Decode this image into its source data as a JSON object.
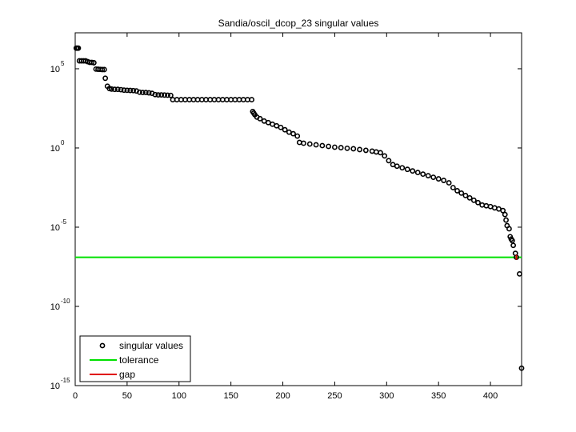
{
  "chart_data": {
    "type": "scatter",
    "title": "Sandia/oscil_dcop_23 singular values",
    "xlabel": "",
    "ylabel": "",
    "yscale": "log",
    "xlim": [
      0,
      430
    ],
    "ylim_log10": [
      -15,
      7.27
    ],
    "x_ticks": [
      0,
      50,
      100,
      150,
      200,
      250,
      300,
      350,
      400
    ],
    "y_ticks": [
      {
        "base": "10",
        "exp": "5",
        "log10": 5
      },
      {
        "base": "10",
        "exp": "0",
        "log10": 0
      },
      {
        "base": "10",
        "exp": "-5",
        "log10": -5
      },
      {
        "base": "10",
        "exp": "-10",
        "log10": -10
      },
      {
        "base": "10",
        "exp": "-15",
        "log10": -15
      }
    ],
    "grid": false,
    "legend_position": "lower left",
    "legend": [
      {
        "label": "singular values",
        "type": "marker",
        "color": "#000000"
      },
      {
        "label": "tolerance",
        "type": "line",
        "color": "#00e000"
      },
      {
        "label": "gap",
        "type": "line",
        "color": "#e00000"
      }
    ],
    "series": [
      {
        "name": "singular values",
        "marker": "circle-open",
        "color": "#000000",
        "points_log10": [
          [
            1,
            6.3
          ],
          [
            2,
            6.3
          ],
          [
            3,
            6.3
          ],
          [
            4,
            5.5
          ],
          [
            6,
            5.5
          ],
          [
            8,
            5.5
          ],
          [
            10,
            5.5
          ],
          [
            12,
            5.45
          ],
          [
            14,
            5.4
          ],
          [
            16,
            5.4
          ],
          [
            18,
            5.38
          ],
          [
            20,
            4.98
          ],
          [
            22,
            4.97
          ],
          [
            24,
            4.96
          ],
          [
            26,
            4.95
          ],
          [
            28,
            4.95
          ],
          [
            29,
            4.4
          ],
          [
            31,
            3.9
          ],
          [
            33,
            3.75
          ],
          [
            35,
            3.72
          ],
          [
            38,
            3.7
          ],
          [
            41,
            3.7
          ],
          [
            44,
            3.68
          ],
          [
            47,
            3.65
          ],
          [
            50,
            3.64
          ],
          [
            53,
            3.63
          ],
          [
            56,
            3.62
          ],
          [
            59,
            3.6
          ],
          [
            62,
            3.52
          ],
          [
            65,
            3.5
          ],
          [
            68,
            3.5
          ],
          [
            71,
            3.48
          ],
          [
            74,
            3.45
          ],
          [
            77,
            3.37
          ],
          [
            80,
            3.35
          ],
          [
            83,
            3.35
          ],
          [
            86,
            3.34
          ],
          [
            89,
            3.33
          ],
          [
            92,
            3.32
          ],
          [
            94,
            3.05
          ],
          [
            98,
            3.05
          ],
          [
            102,
            3.05
          ],
          [
            106,
            3.05
          ],
          [
            110,
            3.05
          ],
          [
            114,
            3.05
          ],
          [
            118,
            3.05
          ],
          [
            122,
            3.05
          ],
          [
            126,
            3.05
          ],
          [
            130,
            3.05
          ],
          [
            134,
            3.05
          ],
          [
            138,
            3.05
          ],
          [
            142,
            3.05
          ],
          [
            146,
            3.05
          ],
          [
            150,
            3.05
          ],
          [
            154,
            3.05
          ],
          [
            158,
            3.05
          ],
          [
            162,
            3.05
          ],
          [
            166,
            3.05
          ],
          [
            170,
            3.05
          ],
          [
            171,
            2.3
          ],
          [
            172,
            2.2
          ],
          [
            173,
            2.1
          ],
          [
            175,
            1.95
          ],
          [
            178,
            1.85
          ],
          [
            182,
            1.7
          ],
          [
            186,
            1.6
          ],
          [
            190,
            1.5
          ],
          [
            194,
            1.4
          ],
          [
            198,
            1.3
          ],
          [
            202,
            1.15
          ],
          [
            206,
            1.0
          ],
          [
            210,
            0.9
          ],
          [
            214,
            0.75
          ],
          [
            216,
            0.35
          ],
          [
            220,
            0.3
          ],
          [
            226,
            0.25
          ],
          [
            232,
            0.2
          ],
          [
            238,
            0.15
          ],
          [
            244,
            0.1
          ],
          [
            250,
            0.05
          ],
          [
            256,
            0.02
          ],
          [
            262,
            -0.02
          ],
          [
            268,
            -0.05
          ],
          [
            274,
            -0.1
          ],
          [
            280,
            -0.15
          ],
          [
            286,
            -0.2
          ],
          [
            290,
            -0.25
          ],
          [
            294,
            -0.3
          ],
          [
            298,
            -0.5
          ],
          [
            302,
            -0.8
          ],
          [
            306,
            -1.05
          ],
          [
            310,
            -1.15
          ],
          [
            315,
            -1.25
          ],
          [
            320,
            -1.35
          ],
          [
            325,
            -1.45
          ],
          [
            330,
            -1.55
          ],
          [
            335,
            -1.65
          ],
          [
            340,
            -1.75
          ],
          [
            345,
            -1.85
          ],
          [
            350,
            -1.95
          ],
          [
            355,
            -2.05
          ],
          [
            360,
            -2.2
          ],
          [
            364,
            -2.5
          ],
          [
            368,
            -2.7
          ],
          [
            372,
            -2.85
          ],
          [
            376,
            -3.0
          ],
          [
            380,
            -3.15
          ],
          [
            384,
            -3.3
          ],
          [
            388,
            -3.45
          ],
          [
            392,
            -3.6
          ],
          [
            396,
            -3.65
          ],
          [
            400,
            -3.7
          ],
          [
            404,
            -3.78
          ],
          [
            408,
            -3.85
          ],
          [
            412,
            -3.95
          ],
          [
            414,
            -4.2
          ],
          [
            415,
            -4.55
          ],
          [
            416,
            -4.9
          ],
          [
            418,
            -5.1
          ],
          [
            419,
            -5.6
          ],
          [
            420,
            -5.75
          ],
          [
            421,
            -5.85
          ],
          [
            422,
            -6.15
          ],
          [
            424,
            -6.65
          ],
          [
            425,
            -6.9
          ],
          [
            428,
            -7.95
          ],
          [
            430,
            -13.9
          ]
        ]
      }
    ],
    "tolerance_log10": -6.9,
    "gap_index": 425
  }
}
